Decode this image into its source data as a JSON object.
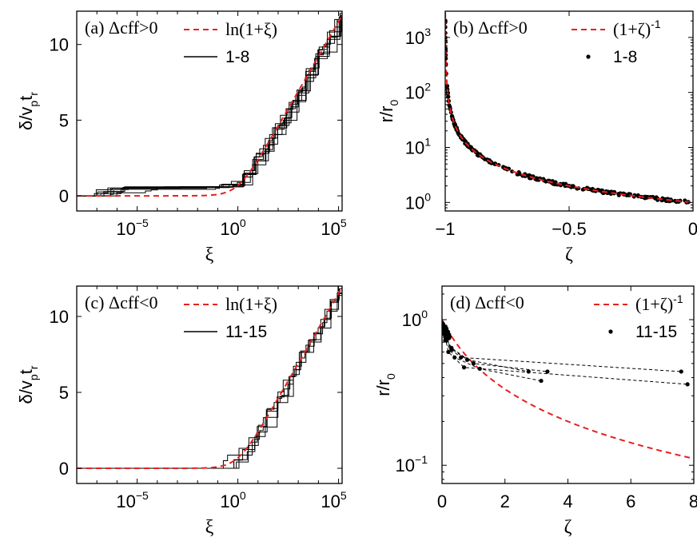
{
  "chart_data": [
    {
      "type": "line",
      "panel": "(a) Δcff>0",
      "xlabel": "ξ",
      "ylabel": "δ/v_p t_r",
      "xscale": "log",
      "xlim": [
        1e-08,
        150000.0
      ],
      "ylim": [
        -1,
        12.2
      ],
      "xticks": [
        "10^-5",
        "10^0",
        "10^5"
      ],
      "yticks": [
        "0",
        "5",
        "10"
      ],
      "legend": [
        {
          "label": "ln(1+ξ)",
          "style": "red dashed"
        },
        {
          "label": "1-8",
          "style": "black solid"
        }
      ],
      "series": [
        {
          "name": "ln(1+ξ)",
          "function": "ln(1+x)"
        },
        {
          "name": "1-8",
          "runs": 8,
          "values": "staircase curves tracking ln(1+ξ)"
        }
      ]
    },
    {
      "type": "scatter",
      "panel": "(b) Δcff>0",
      "xlabel": "ζ",
      "ylabel": "r/r_0",
      "yscale": "log",
      "xlim": [
        -1,
        0
      ],
      "ylim": [
        0.7,
        3000
      ],
      "xticks": [
        "−1",
        "−0.5",
        "0"
      ],
      "yticks": [
        "10^0",
        "10^1",
        "10^2",
        "10^3"
      ],
      "legend": [
        {
          "label": "(1+ζ)-1",
          "style": "red dashed"
        },
        {
          "label": "1-8",
          "style": "black dots"
        }
      ],
      "series": [
        {
          "name": "(1+ζ)-1",
          "function": "1/(1+x)"
        },
        {
          "name": "1-8",
          "x": [
            -0.99,
            -0.98,
            -0.97,
            -0.95,
            -0.93,
            -0.9,
            -0.85,
            -0.8,
            -0.75,
            -0.7,
            -0.6,
            -0.5,
            -0.4,
            -0.3,
            -0.2,
            -0.1,
            -0.02
          ],
          "y": [
            100,
            50,
            33,
            20,
            14,
            10,
            6.7,
            5,
            4,
            3.3,
            2.5,
            2,
            1.67,
            1.43,
            1.25,
            1.11,
            1.02
          ]
        }
      ]
    },
    {
      "type": "line",
      "panel": "(c) Δcff<0",
      "xlabel": "ξ",
      "ylabel": "δ/v_p t_r",
      "xscale": "log",
      "xlim": [
        1e-08,
        150000.0
      ],
      "ylim": [
        -1,
        12
      ],
      "xticks": [
        "10^-5",
        "10^0",
        "10^5"
      ],
      "yticks": [
        "0",
        "5",
        "10"
      ],
      "legend": [
        {
          "label": "ln(1+ξ)",
          "style": "red dashed"
        },
        {
          "label": "11-15",
          "style": "black solid"
        }
      ],
      "series": [
        {
          "name": "ln(1+ξ)",
          "function": "ln(1+x)"
        },
        {
          "name": "11-15",
          "runs": 5,
          "values": "staircase curves starting near ξ≈0.3"
        }
      ]
    },
    {
      "type": "scatter",
      "panel": "(d) Δcff<0",
      "xlabel": "ζ",
      "ylabel": "r/r_0",
      "yscale": "log",
      "xlim": [
        0,
        8
      ],
      "ylim": [
        0.075,
        1.7
      ],
      "xticks": [
        "0",
        "2",
        "4",
        "6",
        "8"
      ],
      "yticks": [
        "10^-1",
        "10^0"
      ],
      "legend": [
        {
          "label": "(1+ζ)-1",
          "style": "red dashed"
        },
        {
          "label": "11-15",
          "style": "black dots"
        }
      ],
      "series": [
        {
          "name": "(1+ζ)-1",
          "function": "1/(1+x)"
        },
        {
          "name": "11-15",
          "traces": [
            {
              "x": [
                0,
                0.05,
                0.15,
                0.3,
                0.6,
                7.6
              ],
              "y": [
                0.95,
                0.85,
                0.72,
                0.62,
                0.55,
                0.44
              ]
            },
            {
              "x": [
                0,
                0.1,
                0.3,
                0.8,
                2.75
              ],
              "y": [
                0.92,
                0.78,
                0.63,
                0.53,
                0.44
              ]
            },
            {
              "x": [
                0,
                0.1,
                0.4,
                1.2,
                3.15
              ],
              "y": [
                0.93,
                0.72,
                0.55,
                0.46,
                0.38
              ]
            },
            {
              "x": [
                0,
                0.05,
                0.3,
                1.0,
                3.35
              ],
              "y": [
                0.94,
                0.8,
                0.64,
                0.5,
                0.44
              ]
            },
            {
              "x": [
                0,
                0.1,
                0.2,
                0.7,
                7.8
              ],
              "y": [
                0.9,
                0.76,
                0.6,
                0.47,
                0.36
              ]
            }
          ]
        }
      ]
    }
  ],
  "colors": {
    "model": "#e8201e",
    "data": "#000000"
  }
}
